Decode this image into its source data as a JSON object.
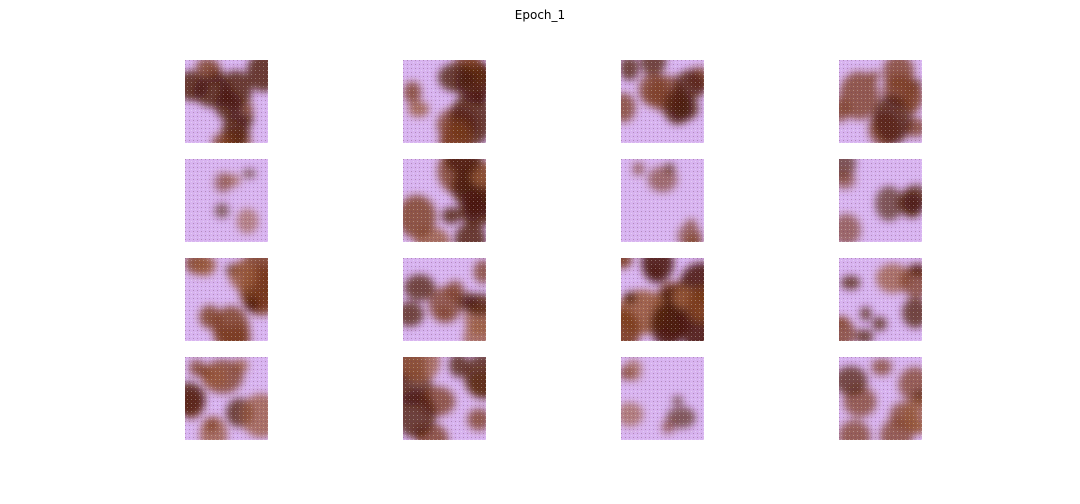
{
  "figure": {
    "title": "Epoch_1"
  },
  "samples": [
    {
      "id": "r1c1",
      "darkness": 0.6
    },
    {
      "id": "r1c2",
      "darkness": 0.55
    },
    {
      "id": "r1c3",
      "darkness": 0.45
    },
    {
      "id": "r1c4",
      "darkness": 0.5
    },
    {
      "id": "r2c1",
      "darkness": 0.05
    },
    {
      "id": "r2c2",
      "darkness": 0.6
    },
    {
      "id": "r2c3",
      "darkness": 0.12
    },
    {
      "id": "r2c4",
      "darkness": 0.2
    },
    {
      "id": "r3c1",
      "darkness": 0.65
    },
    {
      "id": "r3c2",
      "darkness": 0.45
    },
    {
      "id": "r3c3",
      "darkness": 0.85
    },
    {
      "id": "r3c4",
      "darkness": 0.45
    },
    {
      "id": "r4c1",
      "darkness": 0.5
    },
    {
      "id": "r4c2",
      "darkness": 0.5
    },
    {
      "id": "r4c3",
      "darkness": 0.15
    },
    {
      "id": "r4c4",
      "darkness": 0.4
    }
  ],
  "colors": {
    "background": "#d8b4f0",
    "blotch_dark": "#4a1a08",
    "blotch_mid": "#7a3a1c",
    "blotch_light": "#9a5a3a"
  }
}
